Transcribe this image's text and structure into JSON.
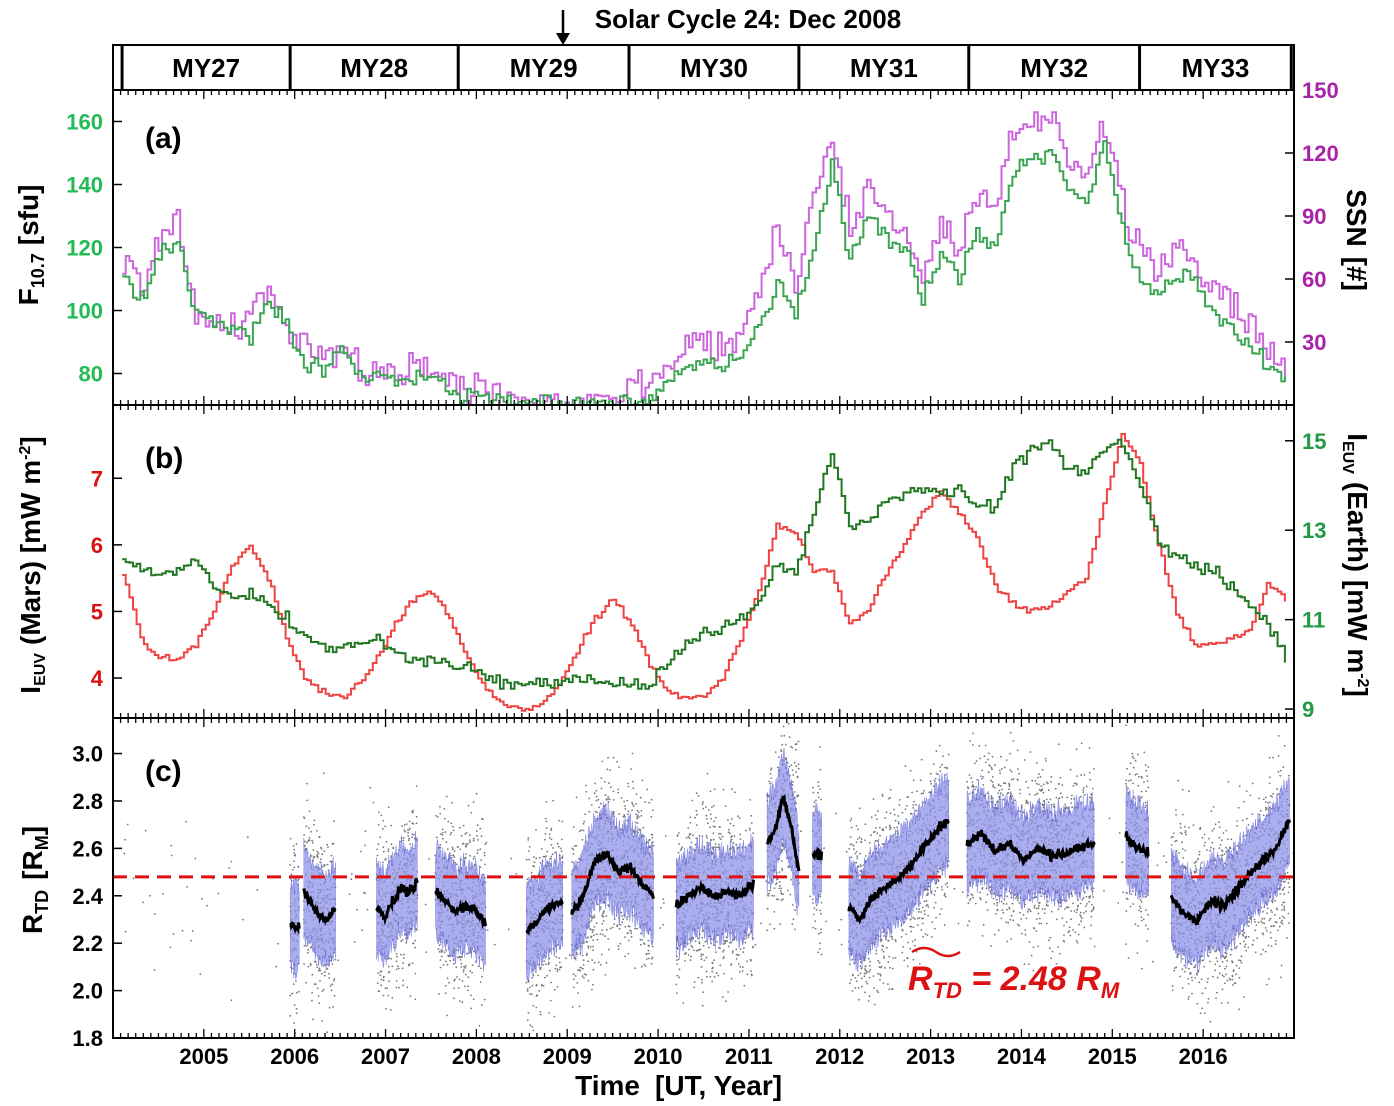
{
  "header": {
    "annotation": "Solar Cycle 24: Dec 2008",
    "mars_years": [
      "MY27",
      "MY28",
      "MY29",
      "MY30",
      "MY31",
      "MY32",
      "MY33"
    ],
    "mars_year_bounds": [
      2004.1,
      2005.95,
      2007.8,
      2009.68,
      2011.55,
      2013.42,
      2015.3,
      2016.97
    ]
  },
  "x_axis": {
    "title": "Time",
    "units": "[UT, Year]",
    "ticks": [
      "2005",
      "2006",
      "2007",
      "2008",
      "2009",
      "2010",
      "2011",
      "2012",
      "2013",
      "2014",
      "2015",
      "2016"
    ],
    "range": [
      2004.0,
      2017.0
    ]
  },
  "colors": {
    "f107": "#22bb44",
    "ssn": "#cc66dd",
    "overlap": "#777777",
    "euv_mars": "#ee4444",
    "euv_earth": "#227722",
    "rtd_points": "#777777",
    "rtd_band": "#8f93e8",
    "rtd_mean": "#000000",
    "median_line": "#dd1111",
    "f107_axis": "#22bb55",
    "ssn_axis": "#aa22aa",
    "mars_axis": "#dd1111",
    "earth_axis": "#229944"
  },
  "chart_data": [
    {
      "type": "line",
      "panel_label": "(a)",
      "ylabel_left": {
        "main": "F",
        "sub": "10.7",
        "units": "[sfu]"
      },
      "ylabel_right": {
        "main": "SSN",
        "units": "[#]"
      },
      "ylim_left": [
        70,
        170
      ],
      "ylim_right": [
        0,
        150
      ],
      "yticks_left": [
        "80",
        "100",
        "120",
        "140",
        "160"
      ],
      "yticks_right": [
        "30",
        "60",
        "90",
        "120",
        "150"
      ],
      "x": [
        2004.1,
        2004.3,
        2004.5,
        2004.7,
        2004.9,
        2005.1,
        2005.3,
        2005.5,
        2005.7,
        2005.9,
        2006.1,
        2006.3,
        2006.5,
        2006.7,
        2006.9,
        2007.1,
        2007.3,
        2007.5,
        2007.7,
        2007.9,
        2008.1,
        2008.3,
        2008.5,
        2008.7,
        2008.9,
        2009.1,
        2009.3,
        2009.5,
        2009.7,
        2009.9,
        2010.1,
        2010.3,
        2010.5,
        2010.7,
        2010.9,
        2011.1,
        2011.3,
        2011.5,
        2011.7,
        2011.9,
        2012.1,
        2012.3,
        2012.5,
        2012.7,
        2012.9,
        2013.1,
        2013.3,
        2013.5,
        2013.7,
        2013.9,
        2014.1,
        2014.3,
        2014.5,
        2014.7,
        2014.9,
        2015.1,
        2015.3,
        2015.5,
        2015.7,
        2015.9,
        2016.1,
        2016.3,
        2016.5,
        2016.7,
        2016.9
      ],
      "series": [
        {
          "name": "F10.7",
          "axis": "left",
          "values": [
            112,
            103,
            118,
            122,
            98,
            96,
            94,
            92,
            103,
            95,
            85,
            82,
            88,
            78,
            80,
            76,
            79,
            78,
            74,
            73,
            72,
            71,
            70,
            70,
            70,
            70,
            70,
            71,
            72,
            73,
            78,
            82,
            84,
            82,
            84,
            95,
            110,
            100,
            120,
            145,
            118,
            130,
            122,
            120,
            105,
            118,
            110,
            125,
            120,
            145,
            148,
            150,
            140,
            132,
            155,
            125,
            110,
            105,
            112,
            110,
            100,
            95,
            90,
            82,
            78
          ]
        },
        {
          "name": "SSN",
          "axis": "right",
          "values": [
            70,
            55,
            80,
            90,
            40,
            40,
            35,
            45,
            55,
            35,
            25,
            22,
            30,
            15,
            18,
            14,
            18,
            16,
            10,
            8,
            8,
            5,
            3,
            2,
            2,
            2,
            3,
            6,
            8,
            12,
            20,
            28,
            32,
            28,
            32,
            55,
            85,
            60,
            100,
            130,
            80,
            105,
            90,
            85,
            60,
            85,
            70,
            100,
            90,
            130,
            135,
            140,
            120,
            110,
            135,
            95,
            70,
            65,
            75,
            70,
            55,
            45,
            38,
            25,
            15
          ]
        }
      ]
    },
    {
      "type": "line",
      "panel_label": "(b)",
      "ylabel_left": {
        "main": "I",
        "sub": "EUV",
        "rest": "(Mars) [mW m",
        "sup": "-2",
        "end": "]"
      },
      "ylabel_right": {
        "main": "I",
        "sub": "EUV",
        "rest": "(Earth) [mW m",
        "sup": "-2",
        "end": "]"
      },
      "ylim_left": [
        3.4,
        8.1
      ],
      "ylim_right": [
        8.8,
        15.8
      ],
      "yticks_left": [
        "4",
        "5",
        "6",
        "7"
      ],
      "yticks_right": [
        "9",
        "11",
        "13",
        "15"
      ],
      "x": [
        2004.1,
        2004.3,
        2004.5,
        2004.7,
        2004.9,
        2005.1,
        2005.3,
        2005.5,
        2005.7,
        2005.9,
        2006.1,
        2006.3,
        2006.5,
        2006.7,
        2006.9,
        2007.1,
        2007.3,
        2007.5,
        2007.7,
        2007.9,
        2008.1,
        2008.3,
        2008.5,
        2008.7,
        2008.9,
        2009.1,
        2009.3,
        2009.5,
        2009.7,
        2009.9,
        2010.1,
        2010.3,
        2010.5,
        2010.7,
        2010.9,
        2011.1,
        2011.3,
        2011.5,
        2011.7,
        2011.9,
        2012.1,
        2012.3,
        2012.5,
        2012.7,
        2012.9,
        2013.1,
        2013.3,
        2013.5,
        2013.7,
        2013.9,
        2014.1,
        2014.3,
        2014.5,
        2014.7,
        2014.9,
        2015.1,
        2015.3,
        2015.5,
        2015.7,
        2015.9,
        2016.1,
        2016.3,
        2016.5,
        2016.7,
        2016.9
      ],
      "series": [
        {
          "name": "Mars",
          "axis": "left",
          "values": [
            5.6,
            4.6,
            4.3,
            4.3,
            4.5,
            5.0,
            5.7,
            6.0,
            5.5,
            4.6,
            4.0,
            3.8,
            3.7,
            3.9,
            4.3,
            4.8,
            5.2,
            5.3,
            4.9,
            4.3,
            3.8,
            3.6,
            3.5,
            3.6,
            3.9,
            4.4,
            4.9,
            5.2,
            4.8,
            4.2,
            3.8,
            3.7,
            3.7,
            4.0,
            4.6,
            5.3,
            6.3,
            6.2,
            5.6,
            5.6,
            4.8,
            5.0,
            5.6,
            6.0,
            6.5,
            6.8,
            6.5,
            6.1,
            5.4,
            5.1,
            5.0,
            5.1,
            5.3,
            5.5,
            6.6,
            7.7,
            7.2,
            6.0,
            5.0,
            4.5,
            4.5,
            4.6,
            4.7,
            5.4,
            5.2
          ]
        },
        {
          "name": "Earth",
          "axis": "right",
          "values": [
            12.3,
            12.1,
            12.0,
            12.1,
            12.3,
            11.7,
            11.5,
            11.6,
            11.4,
            11.0,
            10.6,
            10.4,
            10.3,
            10.5,
            10.6,
            10.3,
            10.1,
            10.1,
            10.0,
            9.9,
            9.7,
            9.6,
            9.5,
            9.5,
            9.6,
            9.7,
            9.6,
            9.6,
            9.5,
            9.6,
            10.0,
            10.4,
            10.7,
            10.8,
            11.0,
            11.3,
            12.3,
            12.0,
            13.4,
            14.7,
            13.1,
            13.2,
            13.7,
            13.8,
            13.9,
            13.8,
            13.9,
            13.6,
            13.5,
            14.4,
            14.8,
            15.0,
            14.3,
            14.3,
            14.8,
            15.0,
            14.0,
            12.8,
            12.4,
            12.2,
            12.1,
            11.7,
            11.3,
            10.9,
            10.2
          ]
        }
      ]
    },
    {
      "type": "scatter",
      "panel_label": "(c)",
      "ylabel": {
        "main": "R",
        "sub": "TD",
        "units": "[R",
        "units_sub": "M",
        "units_end": "]"
      },
      "ylim": [
        1.8,
        3.15
      ],
      "yticks": [
        "1.8",
        "2.0",
        "2.2",
        "2.4",
        "2.6",
        "2.8",
        "3.0"
      ],
      "median": 2.48,
      "median_label": {
        "main": "R",
        "sub": "TD",
        "eq": " = 2.48 R",
        "unit_sub": "M"
      },
      "segments": [
        {
          "x0": 2005.95,
          "x1": 2006.05,
          "values": [
            2.28,
            2.26
          ]
        },
        {
          "x0": 2006.1,
          "x1": 2006.45,
          "values": [
            2.42,
            2.38,
            2.33,
            2.3,
            2.31,
            2.34
          ]
        },
        {
          "x0": 2006.9,
          "x1": 2007.35,
          "values": [
            2.35,
            2.3,
            2.38,
            2.43,
            2.41,
            2.46
          ]
        },
        {
          "x0": 2007.55,
          "x1": 2008.1,
          "values": [
            2.42,
            2.38,
            2.33,
            2.36,
            2.34,
            2.28
          ]
        },
        {
          "x0": 2008.55,
          "x1": 2008.95,
          "values": [
            2.25,
            2.28,
            2.34,
            2.36,
            2.38
          ]
        },
        {
          "x0": 2009.05,
          "x1": 2009.95,
          "values": [
            2.33,
            2.4,
            2.55,
            2.58,
            2.5,
            2.52,
            2.45,
            2.4
          ]
        },
        {
          "x0": 2010.2,
          "x1": 2011.05,
          "values": [
            2.36,
            2.4,
            2.44,
            2.39,
            2.42,
            2.4,
            2.45
          ]
        },
        {
          "x0": 2011.2,
          "x1": 2011.55,
          "values": [
            2.62,
            2.68,
            2.82,
            2.7,
            2.5
          ]
        },
        {
          "x0": 2011.7,
          "x1": 2011.8,
          "values": [
            2.58,
            2.56
          ]
        },
        {
          "x0": 2012.1,
          "x1": 2013.2,
          "values": [
            2.35,
            2.3,
            2.38,
            2.43,
            2.46,
            2.5,
            2.55,
            2.62,
            2.68,
            2.72
          ]
        },
        {
          "x0": 2013.4,
          "x1": 2014.8,
          "values": [
            2.62,
            2.66,
            2.59,
            2.62,
            2.55,
            2.6,
            2.57,
            2.58,
            2.6,
            2.62
          ]
        },
        {
          "x0": 2015.15,
          "x1": 2015.4,
          "values": [
            2.65,
            2.6,
            2.58
          ]
        },
        {
          "x0": 2015.65,
          "x1": 2016.95,
          "values": [
            2.4,
            2.32,
            2.3,
            2.38,
            2.36,
            2.42,
            2.5,
            2.55,
            2.6,
            2.72
          ]
        }
      ]
    }
  ]
}
